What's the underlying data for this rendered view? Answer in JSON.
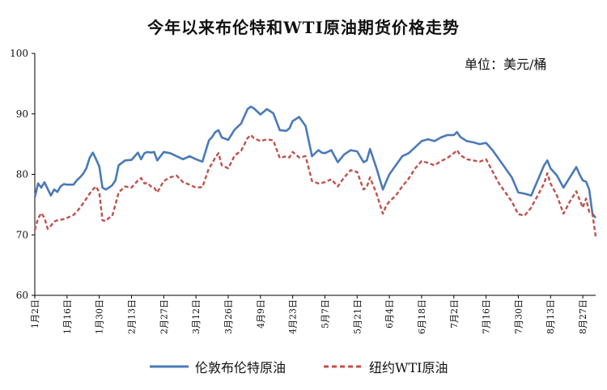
{
  "chart_data": {
    "type": "line",
    "title": "今年以来布伦特和WTI原油期货价格走势",
    "unit": "单位：美元/桶",
    "ylim": [
      60,
      100
    ],
    "yticks": [
      60,
      70,
      80,
      90,
      100
    ],
    "grid": false,
    "legend_position": "bottom",
    "x_tick_labels": [
      "1月2日",
      "1月16日",
      "1月30日",
      "2月13日",
      "2月27日",
      "3月12日",
      "3月26日",
      "4月9日",
      "4月23日",
      "5月7日",
      "5月21日",
      "6月4日",
      "6月18日",
      "7月2日",
      "7月16日",
      "7月30日",
      "8月13日",
      "8月27日"
    ],
    "x_range": [
      0,
      174
    ],
    "x_ticks": [
      0,
      10,
      20,
      30,
      40,
      50,
      60,
      70,
      80,
      90,
      100,
      110,
      120,
      130,
      140,
      150,
      160,
      170
    ],
    "series": [
      {
        "name": "伦敦布伦特原油",
        "color": "#4a7ab8",
        "style": "solid",
        "x": [
          0,
          1,
          2,
          3,
          4,
          5,
          6,
          7,
          8,
          9,
          10,
          12,
          13,
          14,
          15,
          16,
          17,
          18,
          19,
          20,
          21,
          22,
          23,
          24,
          25,
          26,
          28,
          30,
          32,
          33,
          34,
          35,
          36,
          37,
          38,
          40,
          42,
          44,
          46,
          48,
          50,
          52,
          54,
          55,
          56,
          57,
          58,
          60,
          62,
          64,
          66,
          67,
          68,
          70,
          72,
          74,
          76,
          78,
          79,
          80,
          82,
          84,
          86,
          88,
          89,
          90,
          92,
          94,
          96,
          98,
          100,
          102,
          103,
          104,
          106,
          108,
          109,
          110,
          112,
          114,
          116,
          118,
          120,
          122,
          124,
          126,
          128,
          130,
          131,
          132,
          134,
          136,
          138,
          140,
          142,
          144,
          146,
          148,
          150,
          152,
          154,
          156,
          158,
          159,
          160,
          162,
          164,
          166,
          168,
          169,
          170,
          171,
          172,
          173,
          174
        ],
        "values": [
          76.2,
          78.5,
          77.8,
          78.7,
          77.6,
          76.5,
          77.5,
          77.1,
          78.0,
          78.4,
          78.3,
          78.3,
          79.0,
          79.5,
          80.1,
          81.0,
          82.7,
          83.6,
          82.5,
          81.3,
          77.8,
          77.5,
          77.8,
          78.2,
          79.0,
          81.5,
          82.3,
          82.4,
          83.6,
          82.5,
          83.5,
          83.7,
          83.6,
          83.7,
          82.3,
          83.7,
          83.5,
          83.0,
          82.5,
          83.0,
          82.5,
          82.1,
          85.6,
          86.2,
          87.0,
          87.3,
          86.1,
          85.7,
          87.4,
          88.4,
          90.8,
          91.2,
          90.9,
          89.9,
          90.8,
          90.1,
          87.3,
          87.2,
          87.6,
          88.8,
          89.5,
          88.0,
          83.0,
          84.0,
          83.6,
          83.5,
          84.0,
          82.0,
          83.3,
          84.0,
          83.8,
          82.0,
          82.3,
          84.2,
          81.0,
          77.5,
          78.8,
          80.0,
          81.5,
          83.0,
          83.5,
          84.5,
          85.5,
          85.8,
          85.5,
          86.1,
          86.5,
          86.5,
          87.0,
          86.2,
          85.5,
          85.3,
          85.0,
          85.2,
          84.0,
          82.5,
          81.0,
          79.5,
          77.0,
          76.8,
          76.5,
          79.0,
          81.5,
          82.3,
          81.0,
          79.8,
          77.8,
          79.5,
          81.2,
          80.0,
          79.0,
          78.8,
          77.5,
          73.5,
          72.8
        ]
      },
      {
        "name": "纽约WTI原油",
        "color": "#c0504d",
        "style": "dashed",
        "x": [
          0,
          1,
          2,
          3,
          4,
          5,
          6,
          7,
          8,
          9,
          10,
          12,
          13,
          14,
          15,
          16,
          17,
          18,
          19,
          20,
          21,
          22,
          23,
          24,
          25,
          26,
          28,
          30,
          32,
          33,
          34,
          35,
          36,
          37,
          38,
          40,
          42,
          44,
          46,
          48,
          50,
          52,
          54,
          55,
          56,
          57,
          58,
          60,
          62,
          64,
          66,
          67,
          68,
          70,
          72,
          74,
          76,
          78,
          79,
          80,
          82,
          84,
          86,
          88,
          89,
          90,
          92,
          94,
          96,
          98,
          100,
          102,
          103,
          104,
          106,
          108,
          109,
          110,
          112,
          114,
          116,
          118,
          120,
          122,
          124,
          126,
          128,
          130,
          131,
          132,
          134,
          136,
          138,
          140,
          142,
          144,
          146,
          148,
          150,
          152,
          154,
          156,
          158,
          159,
          160,
          162,
          164,
          166,
          168,
          169,
          170,
          171,
          172,
          173,
          174
        ],
        "values": [
          70.8,
          72.7,
          73.6,
          72.8,
          71.0,
          71.5,
          72.2,
          72.4,
          72.5,
          72.6,
          72.8,
          73.3,
          73.8,
          74.5,
          75.2,
          76.0,
          76.8,
          77.5,
          78.0,
          77.0,
          72.4,
          72.3,
          72.8,
          73.1,
          75.0,
          77.0,
          78.0,
          77.8,
          79.0,
          79.4,
          78.5,
          78.6,
          78.0,
          77.8,
          77.0,
          78.9,
          79.5,
          79.8,
          78.7,
          78.3,
          77.8,
          77.9,
          81.0,
          81.8,
          82.8,
          83.5,
          81.5,
          81.0,
          83.1,
          83.9,
          86.0,
          86.5,
          86.0,
          85.5,
          85.8,
          85.6,
          82.7,
          83.0,
          82.8,
          83.7,
          82.8,
          83.0,
          78.9,
          78.5,
          78.6,
          78.7,
          79.2,
          78.0,
          79.5,
          80.7,
          80.4,
          77.5,
          77.9,
          79.5,
          76.8,
          73.5,
          74.8,
          75.5,
          76.5,
          78.0,
          79.3,
          81.0,
          82.2,
          81.9,
          81.5,
          82.2,
          82.7,
          83.5,
          84.0,
          83.2,
          82.5,
          82.3,
          82.1,
          82.5,
          80.5,
          78.5,
          77.0,
          75.5,
          73.4,
          73.2,
          74.5,
          76.5,
          78.5,
          80.2,
          78.5,
          76.5,
          73.5,
          75.5,
          77.2,
          75.8,
          74.5,
          76.0,
          73.8,
          73.5,
          69.7
        ]
      }
    ]
  }
}
